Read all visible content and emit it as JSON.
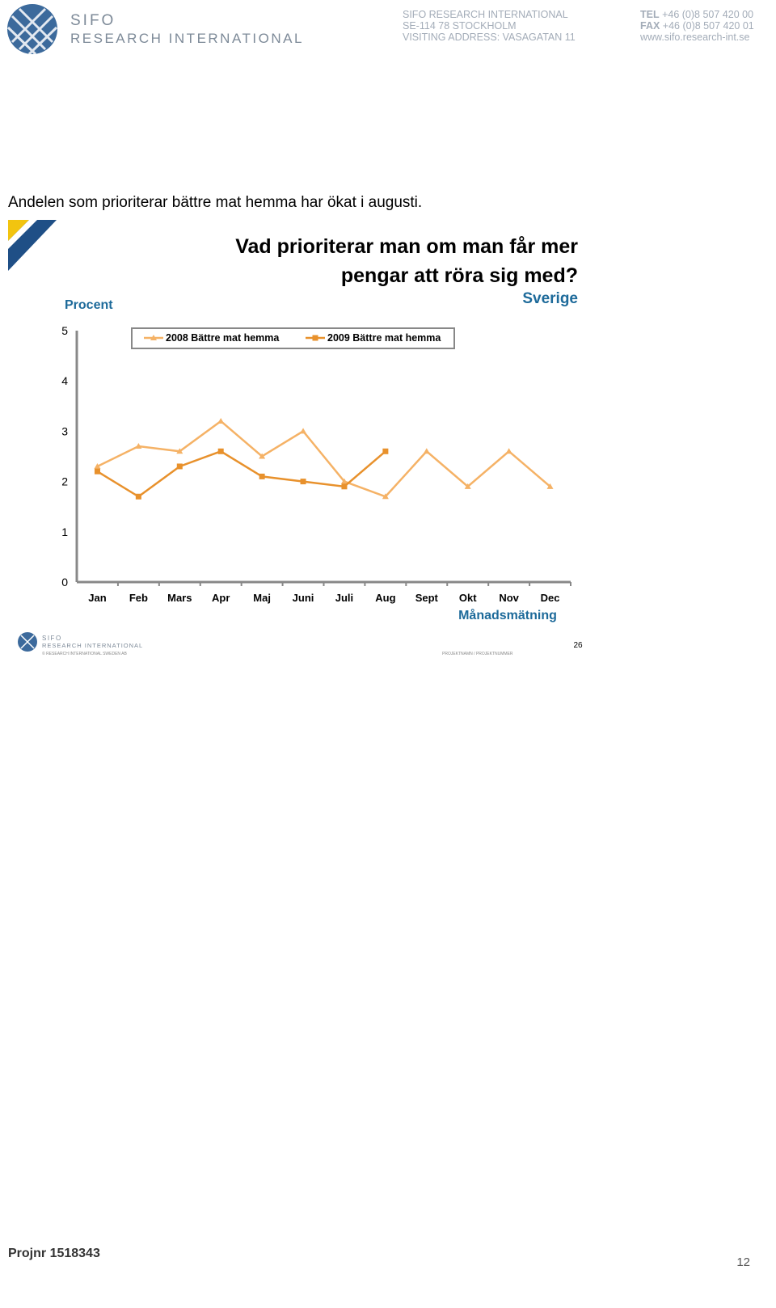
{
  "header": {
    "logo_name": "SIFO",
    "logo_sub": "RESEARCH INTERNATIONAL",
    "address": [
      "SIFO RESEARCH INTERNATIONAL",
      "SE-114 78 STOCKHOLM",
      "VISITING ADDRESS: VASAGATAN 11"
    ],
    "contact": [
      {
        "label": "TEL",
        "text": "+46 (0)8 507 420 00"
      },
      {
        "label": "FAX",
        "text": "+46 (0)8 507 420 01"
      }
    ],
    "web": "www.sifo.research-int.se"
  },
  "intro": "Andelen som prioriterar bättre mat hemma har ökat i augusti.",
  "chart_data": {
    "type": "line",
    "title": [
      "Vad prioriterar man om man får mer",
      "pengar att röra sig med?"
    ],
    "subtitle": "Sverige",
    "y_label": "Procent",
    "x_label": "Månadsmätning",
    "categories": [
      "Jan",
      "Feb",
      "Mars",
      "Apr",
      "Maj",
      "Juni",
      "Juli",
      "Aug",
      "Sept",
      "Okt",
      "Nov",
      "Dec"
    ],
    "series": [
      {
        "name": "2008 Bättre mat hemma",
        "color": "#f5b266",
        "marker": "triangle",
        "values": [
          2.3,
          2.7,
          2.6,
          3.2,
          2.5,
          3.0,
          2.0,
          1.7,
          2.6,
          1.9,
          2.6,
          1.9
        ]
      },
      {
        "name": "2009 Bättre mat hemma",
        "color": "#e8912c",
        "marker": "square",
        "values": [
          2.2,
          1.7,
          2.3,
          2.6,
          2.1,
          2.0,
          1.9,
          2.6,
          null,
          null,
          null,
          null
        ]
      }
    ],
    "ylim": [
      0,
      5
    ],
    "yticks": [
      0,
      1,
      2,
      3,
      4,
      5
    ],
    "grid": false,
    "legend": "top"
  },
  "slide_footer": {
    "logo_name": "SIFO",
    "logo_sub": "RESEARCH INTERNATIONAL",
    "copyright": "© RESEARCH INTERNATIONAL SWEDEN AB",
    "project": "PROJEKTNAMN / PROJEKTNUMMER",
    "slide": "26"
  },
  "footer": {
    "projnr": "Projnr 1518343",
    "page": "12"
  }
}
